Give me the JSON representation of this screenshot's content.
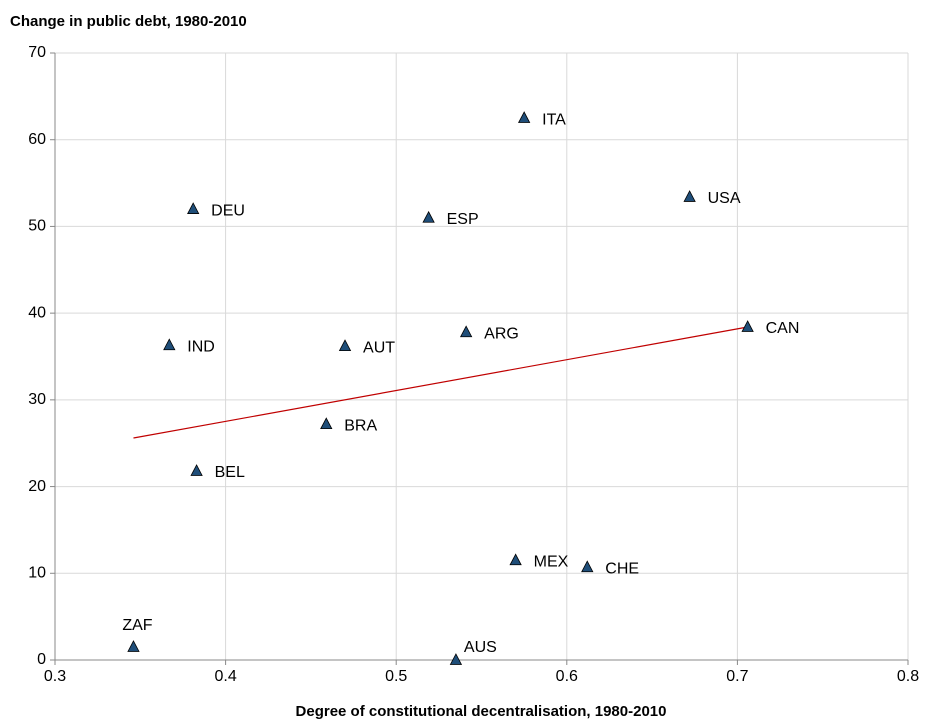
{
  "chart_data": {
    "type": "scatter",
    "ylabel": "Change in public debt, 1980-2010",
    "xlabel": "Degree of constitutional decentralisation, 1980-2010",
    "point_labels": [
      "ZAF",
      "AUS",
      "BEL",
      "IND",
      "DEU",
      "BRA",
      "AUT",
      "ESP",
      "ARG",
      "ITA",
      "MEX",
      "CHE",
      "USA",
      "CAN"
    ],
    "x": [
      0.346,
      0.535,
      0.383,
      0.367,
      0.381,
      0.459,
      0.47,
      0.519,
      0.541,
      0.575,
      0.57,
      0.612,
      0.672,
      0.706
    ],
    "values": [
      1.5,
      0,
      21.8,
      36.3,
      52.0,
      27.2,
      36.2,
      51.0,
      37.8,
      62.5,
      11.5,
      10.7,
      53.4,
      38.4
    ],
    "color": "#1f4e79",
    "trendline": {
      "x": [
        0.346,
        0.706
      ],
      "y": [
        25.6,
        38.4
      ],
      "color": "#c00000"
    },
    "xlim": [
      0.3,
      0.8
    ],
    "xticks": [
      0.3,
      0.4,
      0.5,
      0.6,
      0.7,
      0.8
    ],
    "ylim": [
      0,
      70
    ],
    "yticks": [
      0,
      10,
      20,
      30,
      40,
      50,
      60,
      70
    ],
    "grid": true
  }
}
